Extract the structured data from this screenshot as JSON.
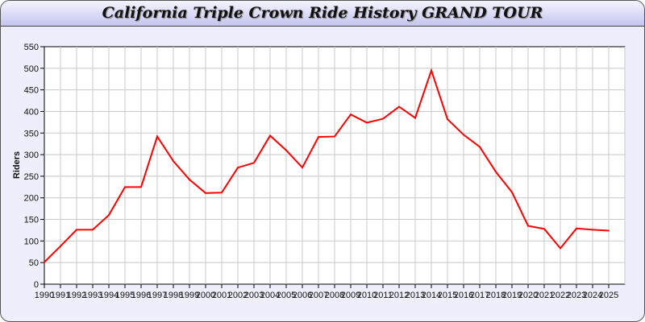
{
  "chart_data": {
    "type": "line",
    "title": "California Triple Crown Ride History GRAND TOUR",
    "xlabel": "",
    "ylabel": "Riders",
    "ylim": [
      0,
      550
    ],
    "yticks": [
      0,
      50,
      100,
      150,
      200,
      250,
      300,
      350,
      400,
      450,
      500,
      550
    ],
    "grid": true,
    "line_color": "#ff0000",
    "x": [
      1990,
      1991,
      1992,
      1993,
      1994,
      1995,
      1996,
      1997,
      1998,
      1999,
      2000,
      2001,
      2002,
      2003,
      2004,
      2005,
      2006,
      2007,
      2008,
      2009,
      2010,
      2011,
      2012,
      2013,
      2014,
      2015,
      2016,
      2017,
      2018,
      2019,
      2020,
      2021,
      2022,
      2023,
      2024,
      2025
    ],
    "values": [
      51,
      88,
      126,
      126,
      160,
      225,
      225,
      342,
      285,
      242,
      211,
      212,
      270,
      281,
      344,
      310,
      270,
      341,
      342,
      393,
      374,
      383,
      411,
      385,
      495,
      382,
      346,
      318,
      260,
      213,
      135,
      128,
      83,
      129,
      126,
      124
    ]
  }
}
